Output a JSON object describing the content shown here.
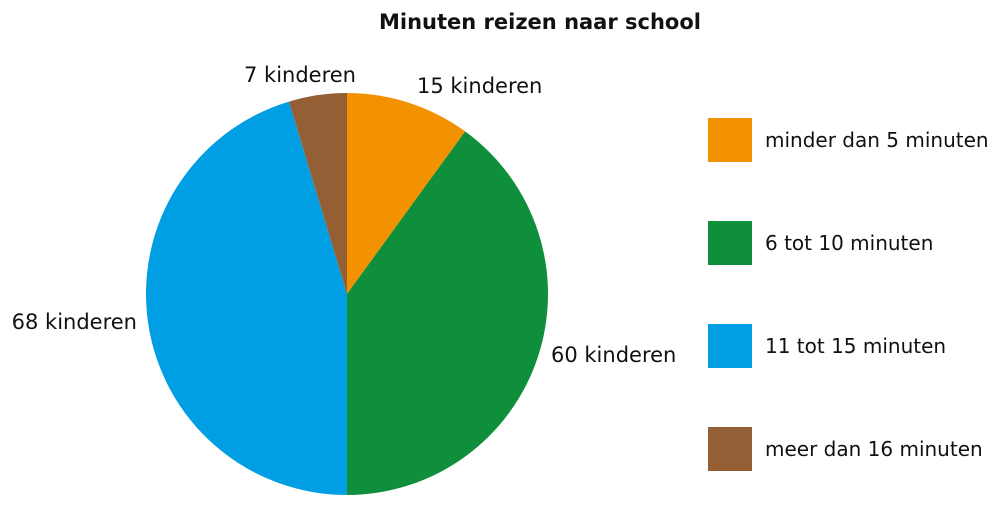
{
  "chart_data": {
    "type": "pie",
    "title": "Minuten reizen naar school",
    "slices": [
      {
        "name": "minder dan 5 minuten",
        "value": 15,
        "label": "15 kinderen",
        "color": "#f39200"
      },
      {
        "name": "6 tot 10 minuten",
        "value": 60,
        "label": "60 kinderen",
        "color": "#0f8f3b"
      },
      {
        "name": "11 tot 15 minuten",
        "value": 68,
        "label": "68 kinderen",
        "color": "#009fe3"
      },
      {
        "name": "meer dan 16 minuten",
        "value": 7,
        "label": "7 kinderen",
        "color": "#955f36"
      }
    ],
    "legend_position": "right"
  }
}
